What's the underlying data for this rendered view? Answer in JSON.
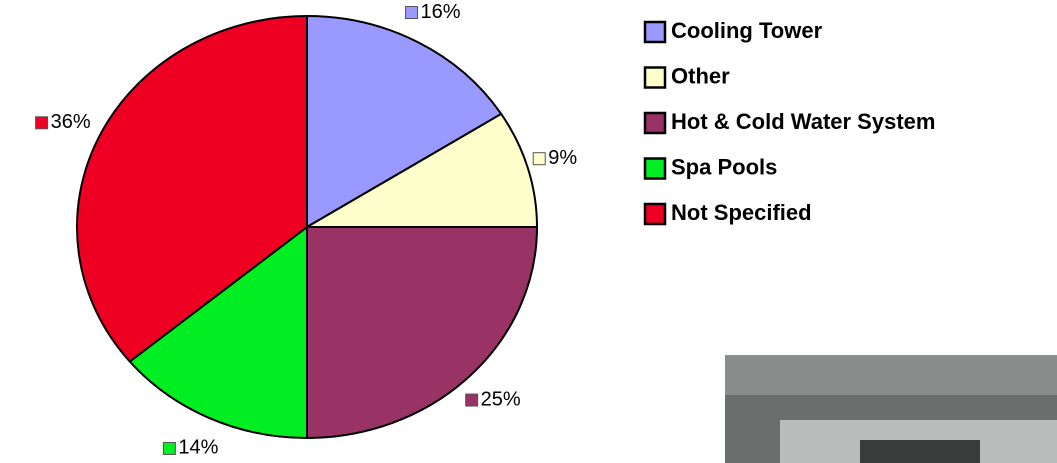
{
  "chart_data": {
    "type": "pie",
    "categories": [
      "Cooling Tower",
      "Other",
      "Hot & Cold Water System",
      "Spa Pools",
      "Not Specified"
    ],
    "values": [
      16,
      9,
      25,
      14,
      36
    ],
    "value_labels": [
      "16%",
      "9%",
      "25%",
      "14%",
      "36%"
    ],
    "colors": [
      "#9999ff",
      "#ffffcc",
      "#993366",
      "#00ee22",
      "#ee0022"
    ],
    "legend": "right"
  }
}
